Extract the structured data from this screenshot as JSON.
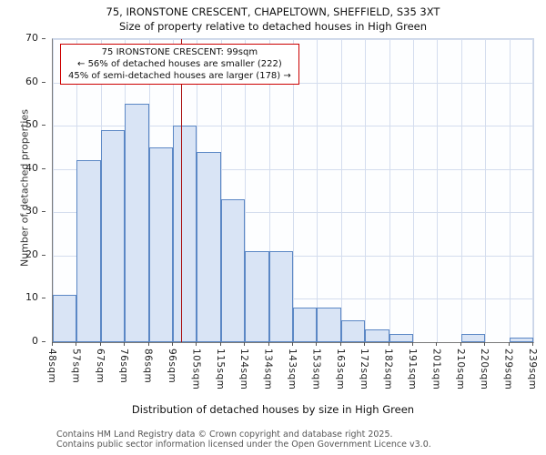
{
  "title": "75, IRONSTONE CRESCENT, CHAPELTOWN, SHEFFIELD, S35 3XT",
  "subtitle": "Size of property relative to detached houses in High Green",
  "annotation": {
    "line1": "75 IRONSTONE CRESCENT: 99sqm",
    "line2": "← 56% of detached houses are smaller (222)",
    "line3": "45% of semi-detached houses are larger (178) →"
  },
  "footer": {
    "line1": "Contains HM Land Registry data © Crown copyright and database right 2025.",
    "line2": "Contains public sector information licensed under the Open Government Licence v3.0."
  },
  "chart_data": {
    "type": "bar",
    "title": "75, IRONSTONE CRESCENT, CHAPELTOWN, SHEFFIELD, S35 3XT",
    "subtitle": "Size of property relative to detached houses in High Green",
    "xlabel": "Distribution of detached houses by size in High Green",
    "ylabel": "Number of detached properties",
    "ylim": [
      0,
      70
    ],
    "yticks": [
      0,
      10,
      20,
      30,
      40,
      50,
      60,
      70
    ],
    "grid": true,
    "bin_labels": [
      "48sqm",
      "57sqm",
      "67sqm",
      "76sqm",
      "86sqm",
      "96sqm",
      "105sqm",
      "115sqm",
      "124sqm",
      "134sqm",
      "143sqm",
      "153sqm",
      "163sqm",
      "172sqm",
      "182sqm",
      "191sqm",
      "201sqm",
      "210sqm",
      "220sqm",
      "229sqm",
      "239sqm"
    ],
    "values": [
      11,
      42,
      49,
      55,
      45,
      50,
      44,
      33,
      21,
      21,
      8,
      8,
      5,
      3,
      2,
      0,
      0,
      2,
      0,
      1
    ],
    "bar_fill": "#d9e4f5",
    "bar_stroke": "#5b87c5",
    "marker": {
      "value_sqm": 99,
      "label": "75 IRONSTONE CRESCENT: 99sqm",
      "color": "#aa1111"
    }
  }
}
